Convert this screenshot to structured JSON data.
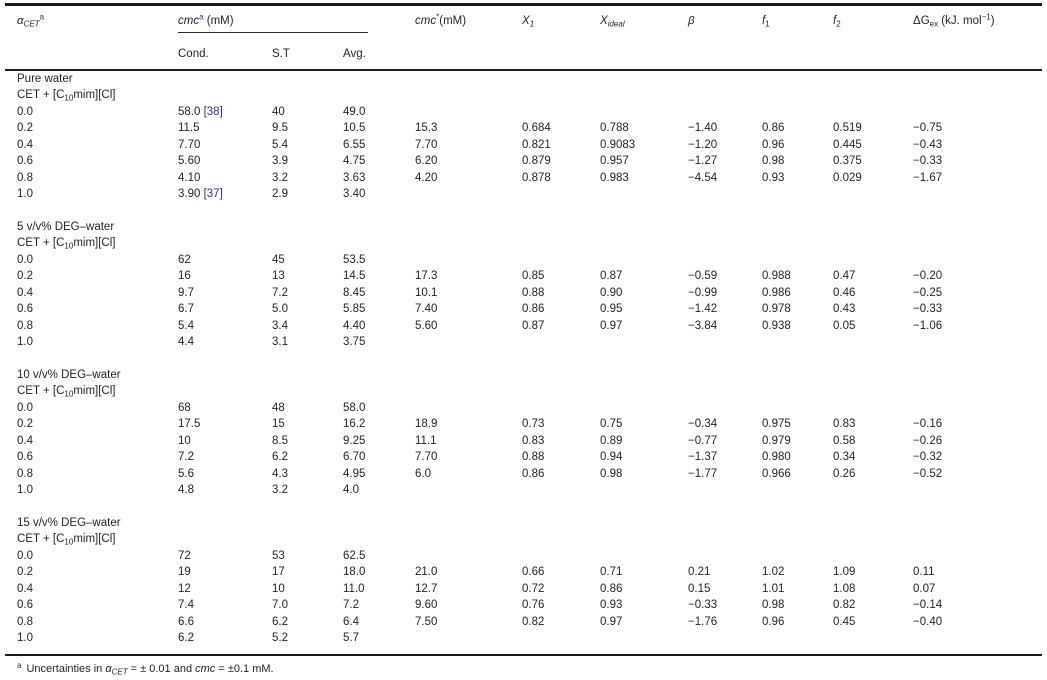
{
  "colors": {
    "text": "#231f20",
    "citation_blue": "#2e3192",
    "rule": "#1b1b1b"
  },
  "table": {
    "header": {
      "alpha": {
        "sym": "α",
        "sub": "CET",
        "sup": "a"
      },
      "cmc_group": {
        "label": "cmc",
        "sup": "a",
        "unit": " (mM)"
      },
      "sub_headers": [
        "Cond.",
        "S.T",
        "Avg."
      ],
      "cmc_star": {
        "label": "cmc",
        "sup": "*",
        "unit": "(mM)"
      },
      "x1": {
        "label": "X",
        "sub": "1"
      },
      "x_ideal": {
        "label": "X",
        "sub": "ideal"
      },
      "beta": "β",
      "f1": {
        "label": "f",
        "sub": "1"
      },
      "f2": {
        "label": "f",
        "sub": "2"
      },
      "dg_ex": {
        "label": "ΔG",
        "sub": "ex",
        "unit_pre": " (kJ. mol",
        "sup": "−1",
        "unit_post": ")"
      }
    },
    "sections": [
      {
        "title": "Pure water",
        "compound": {
          "pre": "CET + [C",
          "sub": "10",
          "post": "mim][Cl]"
        },
        "rows": [
          [
            "0.0",
            "58.0 [38]",
            "40",
            "49.0",
            "",
            "",
            "",
            "",
            "",
            "",
            ""
          ],
          [
            "0.2",
            "11.5",
            "9.5",
            "10.5",
            "15.3",
            "0.684",
            "0.788",
            "−1.40",
            "0.86",
            "0.519",
            "−0.75"
          ],
          [
            "0.4",
            "7.70",
            "5.4",
            "6.55",
            "7.70",
            "0.821",
            "0.9083",
            "−1.20",
            "0.96",
            "0.445",
            "−0.43"
          ],
          [
            "0.6",
            "5.60",
            "3.9",
            "4.75",
            "6.20",
            "0.879",
            "0.957",
            "−1.27",
            "0.98",
            "0.375",
            "−0.33"
          ],
          [
            "0.8",
            "4.10",
            "3.2",
            "3.63",
            "4.20",
            "0.878",
            "0.983",
            "−4.54",
            "0.93",
            "0.029",
            "−1.67"
          ],
          [
            "1.0",
            "3.90 [37]",
            "2.9",
            "3.40",
            "",
            "",
            "",
            "",
            "",
            "",
            ""
          ]
        ]
      },
      {
        "title": "5 v/v% DEG–water",
        "compound": {
          "pre": "CET + [C",
          "sub": "10",
          "post": "mim][Cl]"
        },
        "rows": [
          [
            "0.0",
            "62",
            "45",
            "53.5",
            "",
            "",
            "",
            "",
            "",
            "",
            ""
          ],
          [
            "0.2",
            "16",
            "13",
            "14.5",
            "17.3",
            "0.85",
            "0.87",
            "−0.59",
            "0.988",
            "0.47",
            "−0.20"
          ],
          [
            "0.4",
            "9.7",
            "7.2",
            "8.45",
            "10.1",
            "0.88",
            "0.90",
            "−0.99",
            "0.986",
            "0.46",
            "−0.25"
          ],
          [
            "0.6",
            "6.7",
            "5.0",
            "5.85",
            "7.40",
            "0.86",
            "0.95",
            "−1.42",
            "0.978",
            "0.43",
            "−0.33"
          ],
          [
            "0.8",
            "5.4",
            "3.4",
            "4.40",
            "5.60",
            "0.87",
            "0.97",
            "−3.84",
            "0.938",
            "0.05",
            "−1.06"
          ],
          [
            "1.0",
            "4.4",
            "3.1",
            "3.75",
            "",
            "",
            "",
            "",
            "",
            "",
            ""
          ]
        ]
      },
      {
        "title": "10 v/v% DEG–water",
        "compound": {
          "pre": "CET + [C",
          "sub": "10",
          "post": "mim][Cl]"
        },
        "rows": [
          [
            "0.0",
            "68",
            "48",
            "58.0",
            "",
            "",
            "",
            "",
            "",
            "",
            ""
          ],
          [
            "0.2",
            "17.5",
            "15",
            "16.2",
            "18.9",
            "0.73",
            "0.75",
            "−0.34",
            "0.975",
            "0.83",
            "−0.16"
          ],
          [
            "0.4",
            "10",
            "8.5",
            "9.25",
            "11.1",
            "0.83",
            "0.89",
            "−0.77",
            "0.979",
            "0.58",
            "−0.26"
          ],
          [
            "0.6",
            "7.2",
            "6.2",
            "6.70",
            "7.70",
            "0.88",
            "0.94",
            "−1.37",
            "0.980",
            "0.34",
            "−0.32"
          ],
          [
            "0.8",
            "5.6",
            "4.3",
            "4.95",
            "6.0",
            "0.86",
            "0.98",
            "−1.77",
            "0.966",
            "0.26",
            "−0.52"
          ],
          [
            "1.0",
            "4.8",
            "3.2",
            "4.0",
            "",
            "",
            "",
            "",
            "",
            "",
            ""
          ]
        ]
      },
      {
        "title": "15 v/v% DEG–water",
        "compound": {
          "pre": "CET + [C",
          "sub": "10",
          "post": "mim][Cl]"
        },
        "rows": [
          [
            "0.0",
            "72",
            "53",
            "62.5",
            "",
            "",
            "",
            "",
            "",
            "",
            ""
          ],
          [
            "0.2",
            "19",
            "17",
            "18.0",
            "21.0",
            "0.66",
            "0.71",
            "0.21",
            "1.02",
            "1.09",
            "0.11"
          ],
          [
            "0.4",
            "12",
            "10",
            "11.0",
            "12.7",
            "0.72",
            "0.86",
            "0.15",
            "1.01",
            "1.08",
            "0.07"
          ],
          [
            "0.6",
            "7.4",
            "7.0",
            "7.2",
            "9.60",
            "0.76",
            "0.93",
            "−0.33",
            "0.98",
            "0.82",
            "−0.14"
          ],
          [
            "0.8",
            "6.6",
            "6.2",
            "6.4",
            "7.50",
            "0.82",
            "0.97",
            "−1.76",
            "0.96",
            "0.45",
            "−0.40"
          ],
          [
            "1.0",
            "6.2",
            "5.2",
            "5.7",
            "",
            "",
            "",
            "",
            "",
            "",
            ""
          ]
        ]
      }
    ],
    "footnote": {
      "marker": "a",
      "pre": "Uncertainties in ",
      "alpha_sym": "α",
      "alpha_sub": "CET",
      "mid": " = ± 0.01 and ",
      "cmc_label": "cmc",
      "post": " = ±0.1 mM."
    }
  }
}
